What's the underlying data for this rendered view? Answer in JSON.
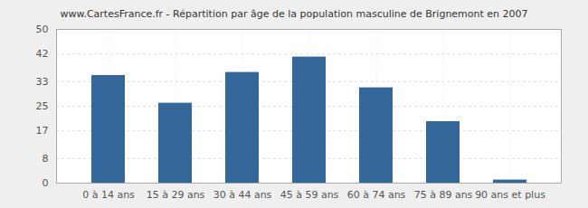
{
  "chart_data": {
    "type": "bar",
    "title": "www.CartesFrance.fr - Répartition par âge de la population masculine de Brignemont en 2007",
    "categories": [
      "0 à 14 ans",
      "15 à 29 ans",
      "30 à 44 ans",
      "45 à 59 ans",
      "60 à 74 ans",
      "75 à 89 ans",
      "90 ans et plus"
    ],
    "values": [
      35,
      26,
      36,
      41,
      31,
      20,
      1
    ],
    "color": "#336699",
    "ylim": [
      0,
      50
    ],
    "yticks": [
      0,
      8,
      17,
      25,
      33,
      42,
      50
    ],
    "grid": true
  }
}
